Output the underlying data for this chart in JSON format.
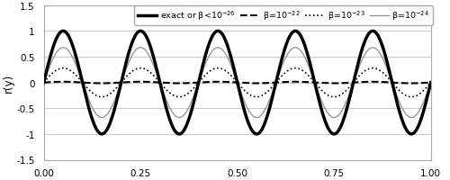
{
  "title": "",
  "ylabel": "r(y)",
  "xlabel": "",
  "xlim": [
    0.0,
    1.0
  ],
  "ylim": [
    -1.5,
    1.5
  ],
  "xticks": [
    0.0,
    0.25,
    0.5,
    0.75,
    1.0
  ],
  "yticks": [
    -1.5,
    -1.0,
    -0.5,
    0.0,
    0.5,
    1.0,
    1.5
  ],
  "legend_entries": [
    {
      "label": "exact or β<10$^{-26}$",
      "color": "#000000",
      "lw": 2.5,
      "ls": "solid"
    },
    {
      "label": "β=10$^{-22}$",
      "color": "#000000",
      "lw": 1.5,
      "ls": "dashed"
    },
    {
      "label": "β=10$^{-23}$",
      "color": "#000000",
      "lw": 1.2,
      "ls": "dotted"
    },
    {
      "label": "β=10$^{-24}$",
      "color": "#999999",
      "lw": 1.0,
      "ls": "solid"
    }
  ],
  "amplitude_exact": 1.0,
  "amplitude_beta22": 0.015,
  "amplitude_beta23": 0.28,
  "amplitude_beta24": 0.68,
  "background_color": "#ffffff",
  "grid_color": "#cccccc",
  "n_points": 2000
}
